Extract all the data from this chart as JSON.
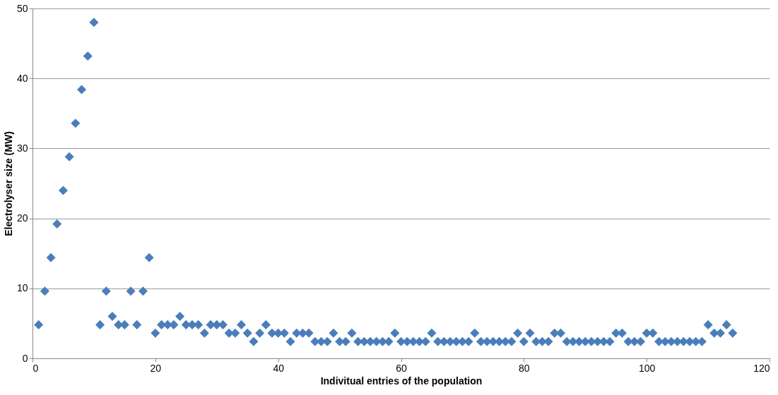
{
  "chart_data": {
    "type": "scatter",
    "xlabel": "Indivitual  entries of the population",
    "ylabel": "Electrolyser size (MW)",
    "x": [
      1,
      2,
      3,
      4,
      5,
      6,
      7,
      8,
      9,
      10,
      11,
      12,
      13,
      14,
      15,
      16,
      17,
      18,
      19,
      20,
      21,
      22,
      23,
      24,
      25,
      26,
      27,
      28,
      29,
      30,
      31,
      32,
      33,
      34,
      35,
      36,
      37,
      38,
      39,
      40,
      41,
      42,
      43,
      44,
      45,
      46,
      47,
      48,
      49,
      50,
      51,
      52,
      53,
      54,
      55,
      56,
      57,
      58,
      59,
      60,
      61,
      62,
      63,
      64,
      65,
      66,
      67,
      68,
      69,
      70,
      71,
      72,
      73,
      74,
      75,
      76,
      77,
      78,
      79,
      80,
      81,
      82,
      83,
      84,
      85,
      86,
      87,
      88,
      89,
      90,
      91,
      92,
      93,
      94,
      95,
      96,
      97,
      98,
      99,
      100,
      101,
      102,
      103,
      104,
      105,
      106,
      107,
      108,
      109,
      110,
      111,
      112,
      113,
      114
    ],
    "series": [
      {
        "color": "#4a7ebb",
        "values": [
          4.8,
          9.6,
          14.4,
          19.2,
          24,
          28.8,
          33.6,
          38.4,
          43.2,
          48,
          4.8,
          9.6,
          6.0,
          4.8,
          4.8,
          9.6,
          4.8,
          9.6,
          14.4,
          3.6,
          4.8,
          4.8,
          4.8,
          6.0,
          4.8,
          4.8,
          4.8,
          3.6,
          4.8,
          4.8,
          4.8,
          3.6,
          3.6,
          4.8,
          3.6,
          2.4,
          3.6,
          4.8,
          3.6,
          3.6,
          3.6,
          2.4,
          3.6,
          3.6,
          3.6,
          2.4,
          2.4,
          2.4,
          3.6,
          2.4,
          2.4,
          3.6,
          2.4,
          2.4,
          2.4,
          2.4,
          2.4,
          2.4,
          3.6,
          2.4,
          2.4,
          2.4,
          2.4,
          2.4,
          3.6,
          2.4,
          2.4,
          2.4,
          2.4,
          2.4,
          2.4,
          3.6,
          2.4,
          2.4,
          2.4,
          2.4,
          2.4,
          2.4,
          3.6,
          2.4,
          3.6,
          2.4,
          2.4,
          2.4,
          3.6,
          3.6,
          2.4,
          2.4,
          2.4,
          2.4,
          2.4,
          2.4,
          2.4,
          2.4,
          3.6,
          3.6,
          2.4,
          2.4,
          2.4,
          3.6,
          3.6,
          2.4,
          2.4,
          2.4,
          2.4,
          2.4,
          2.4,
          2.4,
          2.4,
          4.8,
          3.6,
          3.6,
          4.8,
          3.6
        ]
      }
    ],
    "xlim": [
      0,
      120
    ],
    "xticks": [
      0,
      20,
      40,
      60,
      80,
      100,
      120
    ],
    "ylim": [
      0,
      50
    ],
    "yticks": [
      0,
      10,
      20,
      30,
      40,
      50
    ],
    "grid": "y",
    "marker": "diamond"
  }
}
